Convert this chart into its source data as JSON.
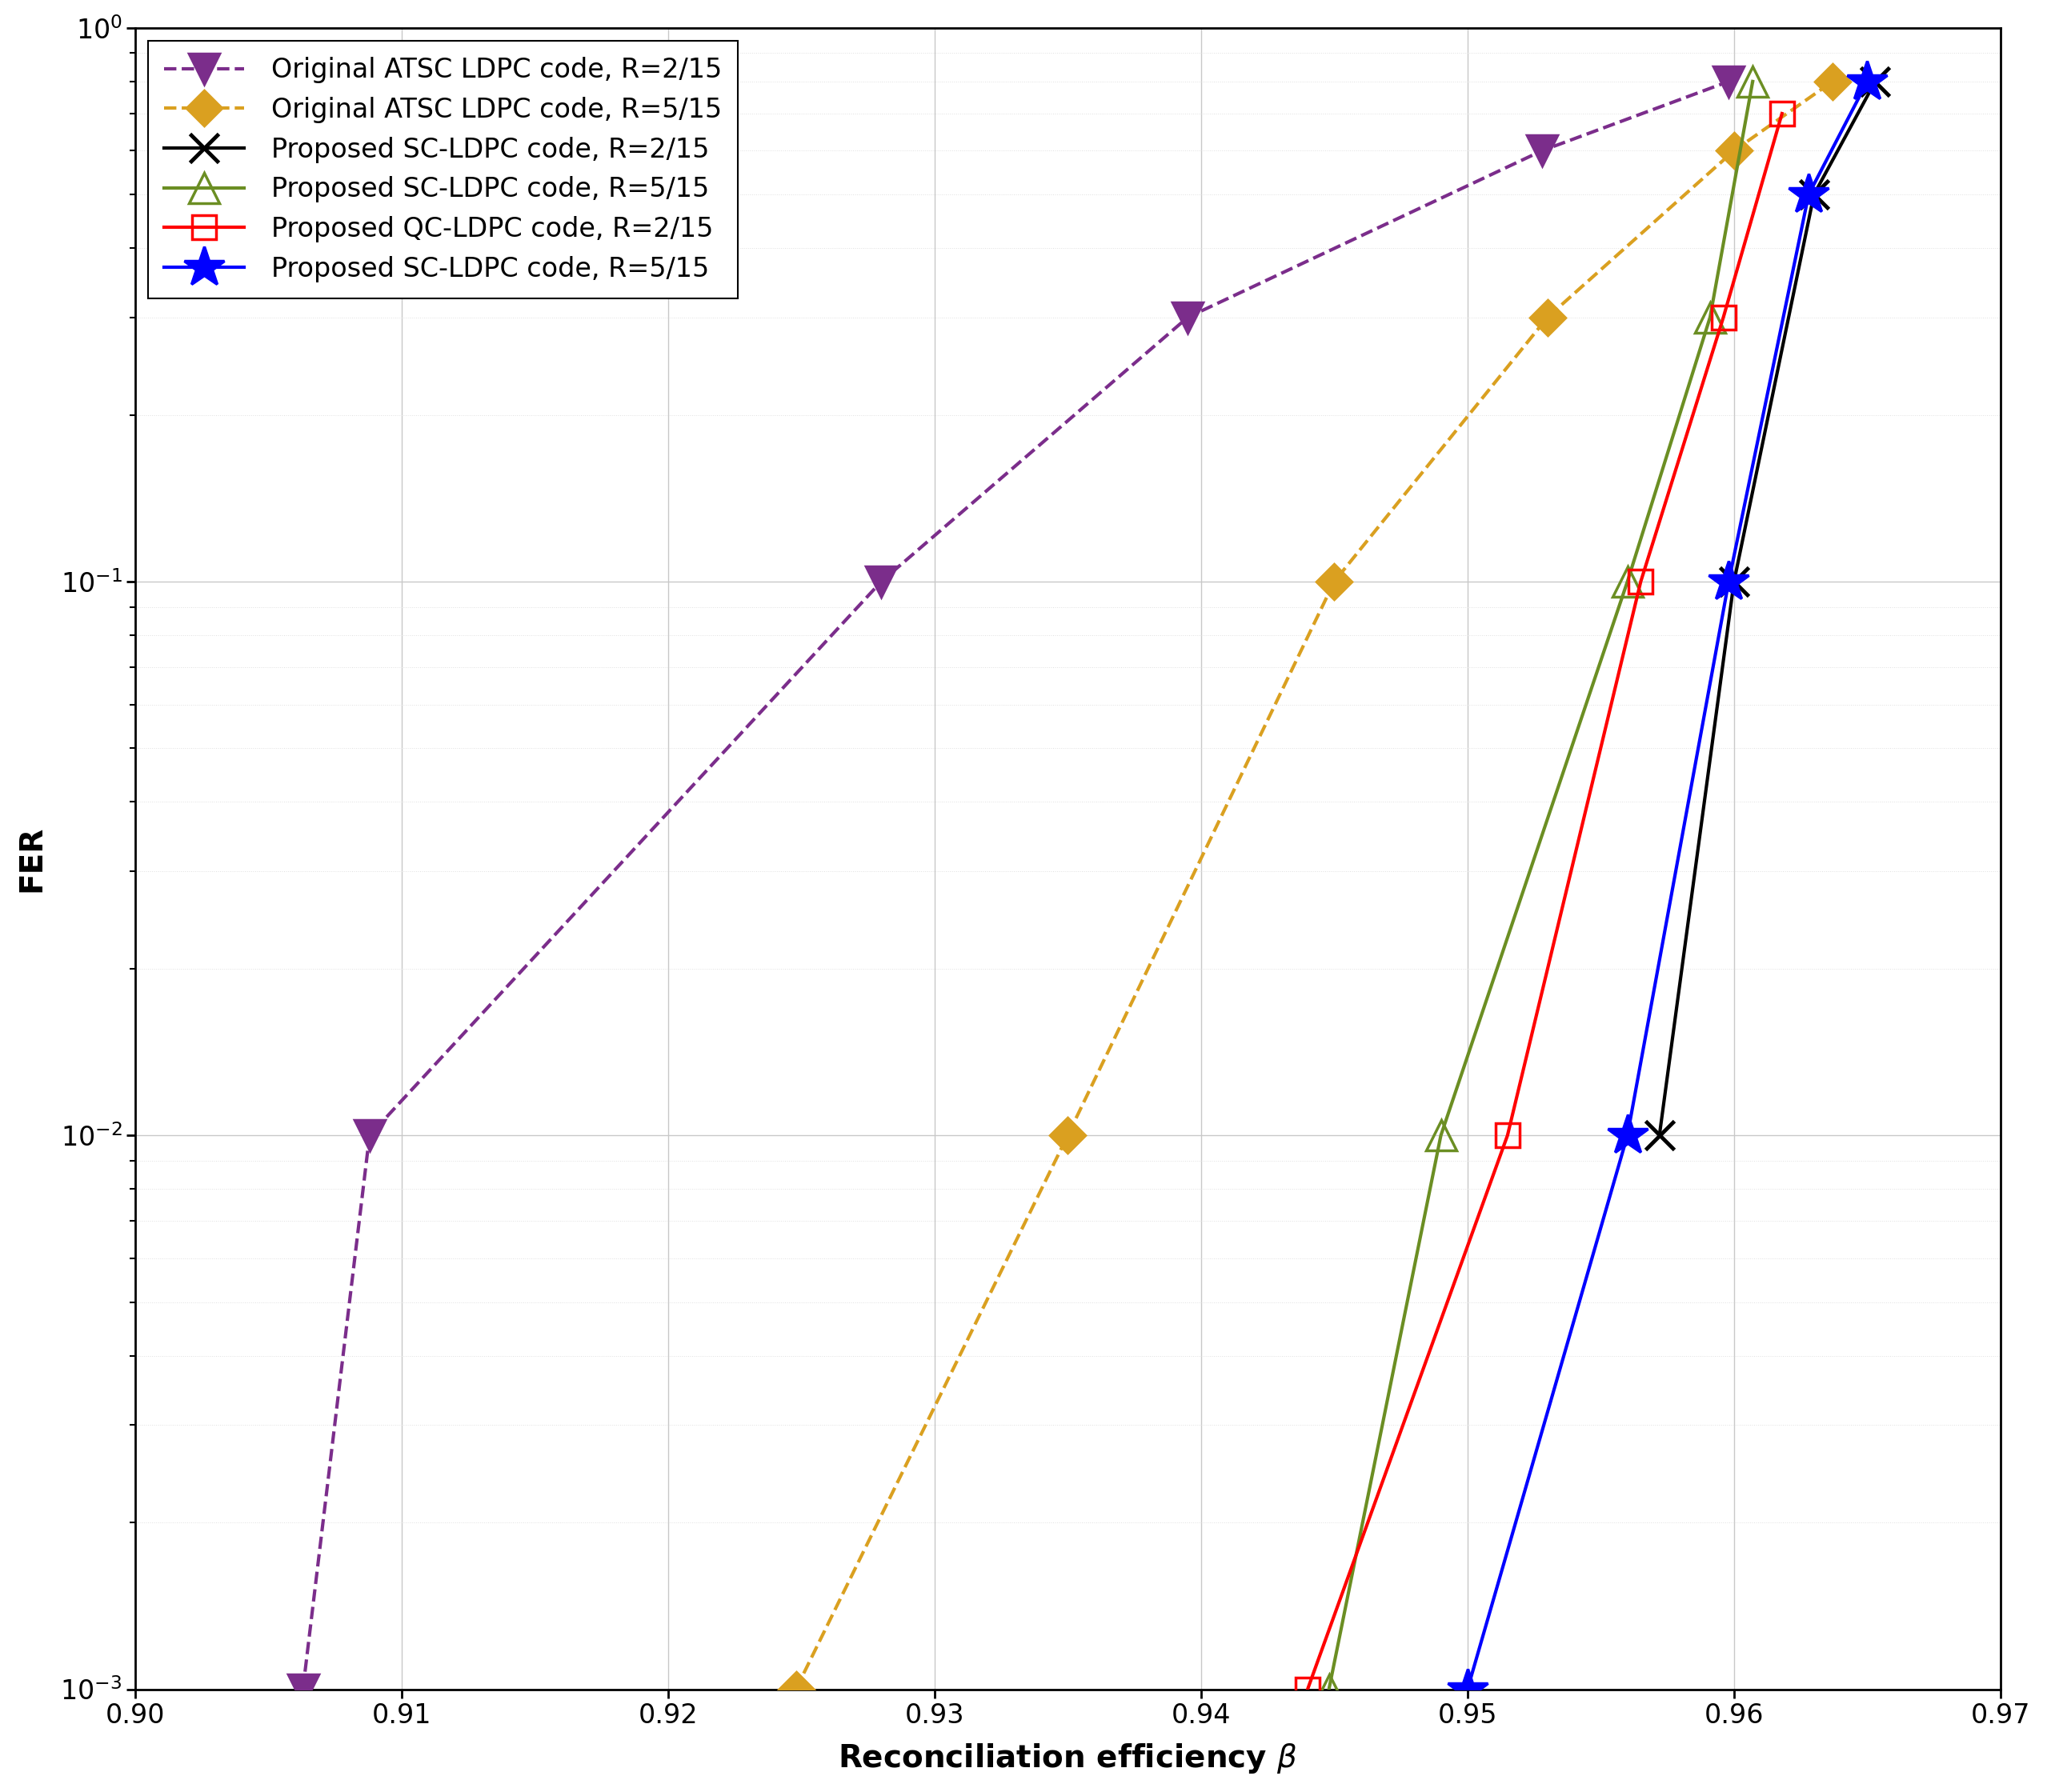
{
  "xlabel": "Reconciliation efficiency $\\beta$",
  "ylabel": "FER",
  "xlim": [
    0.9,
    0.97
  ],
  "series": [
    {
      "label": "Original ATSC LDPC code, R=2/15",
      "color": "#7B2D8B",
      "linestyle": "dashed",
      "marker": "v",
      "markerfacecolor": "#7B2D8B",
      "markeredgecolor": "#7B2D8B",
      "x": [
        0.9063,
        0.9088,
        0.928,
        0.9395,
        0.9528,
        0.9598
      ],
      "y": [
        0.001,
        0.01,
        0.1,
        0.3,
        0.6,
        0.8
      ]
    },
    {
      "label": "Original ATSC LDPC code, R=5/15",
      "color": "#DAA020",
      "linestyle": "dashed",
      "marker": "D",
      "markerfacecolor": "#DAA020",
      "markeredgecolor": "#DAA020",
      "x": [
        0.9248,
        0.935,
        0.945,
        0.953,
        0.96,
        0.9637
      ],
      "y": [
        0.001,
        0.01,
        0.1,
        0.3,
        0.6,
        0.8
      ]
    },
    {
      "label": "Proposed SC-LDPC code, R=2/15",
      "color": "#000000",
      "linestyle": "solid",
      "marker": "x",
      "markerfacecolor": "#000000",
      "markeredgecolor": "#000000",
      "x": [
        0.9572,
        0.96,
        0.963,
        0.9653
      ],
      "y": [
        0.01,
        0.1,
        0.5,
        0.8
      ]
    },
    {
      "label": "Proposed SC-LDPC code, R=5/15",
      "color": "#6B8E23",
      "linestyle": "solid",
      "marker": "^",
      "markerfacecolor": "none",
      "markeredgecolor": "#6B8E23",
      "x": [
        0.9448,
        0.949,
        0.956,
        0.9591,
        0.9607
      ],
      "y": [
        0.001,
        0.01,
        0.1,
        0.3,
        0.8
      ]
    },
    {
      "label": "Proposed QC-LDPC code, R=2/15",
      "color": "#FF0000",
      "linestyle": "solid",
      "marker": "s",
      "markerfacecolor": "none",
      "markeredgecolor": "#FF0000",
      "x": [
        0.944,
        0.9515,
        0.9565,
        0.9596,
        0.9618
      ],
      "y": [
        0.001,
        0.01,
        0.1,
        0.3,
        0.7
      ]
    },
    {
      "label": "Proposed SC-LDPC code, R=5/15",
      "color": "#0000FF",
      "linestyle": "solid",
      "marker": "*",
      "markerfacecolor": "#0000FF",
      "markeredgecolor": "#0000FF",
      "x": [
        0.95,
        0.956,
        0.9598,
        0.9628,
        0.965
      ],
      "y": [
        0.001,
        0.01,
        0.1,
        0.5,
        0.8
      ]
    }
  ],
  "marker_sizes": {
    "v": 28,
    "D": 22,
    "x": 26,
    "^": 28,
    "s": 22,
    "*": 38
  },
  "marker_widths": {
    "v": 2.5,
    "D": 2.5,
    "x": 3.5,
    "^": 2.5,
    "s": 2.5,
    "*": 2.5
  },
  "linewidth": 3.0,
  "legend_fontsize": 24,
  "tick_fontsize": 24,
  "label_fontsize": 28,
  "xticks": [
    0.9,
    0.91,
    0.92,
    0.93,
    0.94,
    0.95,
    0.96,
    0.97
  ],
  "grid_major_color": "#c8c8c8",
  "grid_minor_color": "#e0e0e0"
}
